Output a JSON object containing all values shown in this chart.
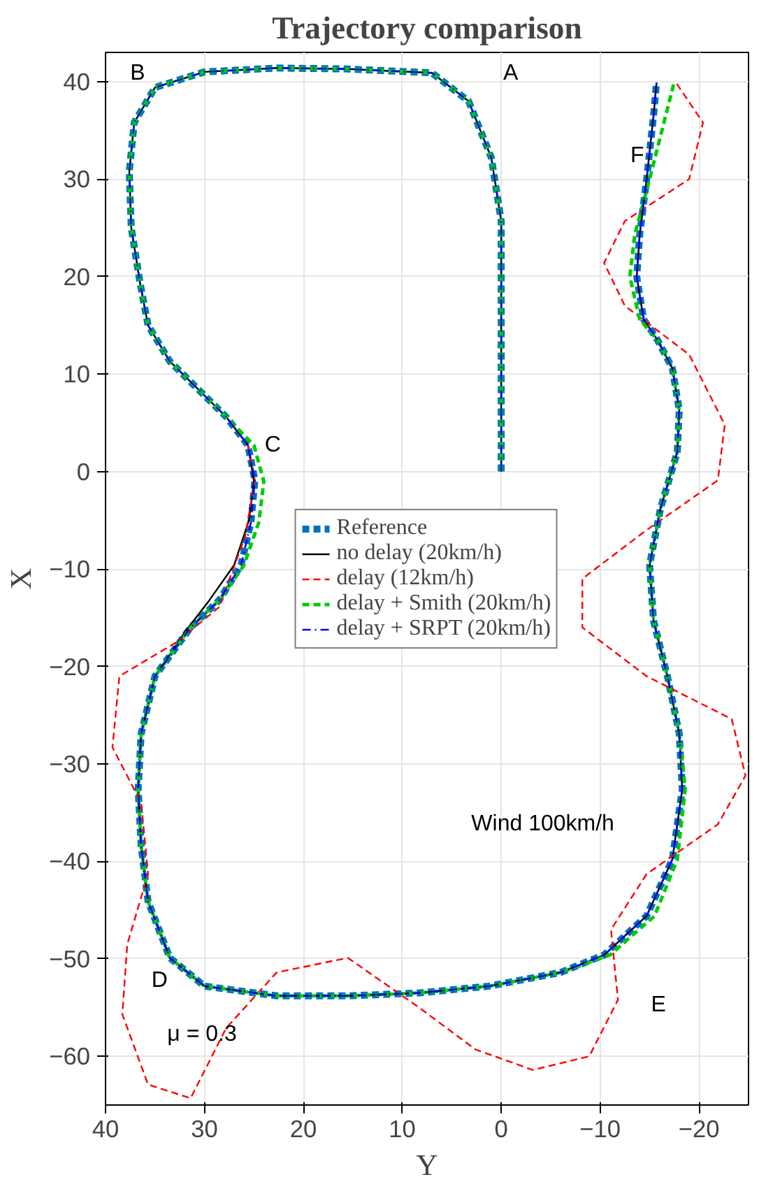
{
  "chart_data": {
    "type": "line",
    "title": "Trajectory comparison",
    "xlabel": "Y",
    "ylabel": "X",
    "xlim": [
      40,
      -25
    ],
    "ylim": [
      -65,
      43
    ],
    "xticks": [
      40,
      30,
      20,
      10,
      0,
      -10,
      -20
    ],
    "yticks": [
      -60,
      -50,
      -40,
      -30,
      -20,
      -10,
      0,
      10,
      20,
      30,
      40
    ],
    "grid": true,
    "legend": "center",
    "series": [
      {
        "name": "Reference",
        "color": "#0072bd",
        "line_style": "dashed",
        "x": [
          0,
          0,
          0,
          1,
          3.3,
          7,
          15.5,
          22.7,
          30,
          35,
          37.1,
          37.6,
          37.4,
          36.5,
          35.7,
          33.5,
          30.6,
          27.8,
          25.6,
          24.9,
          25.3,
          26.3,
          28.5,
          31.4,
          35,
          36.4,
          36.7,
          36.4,
          35.7,
          33.5,
          30,
          22.7,
          15.5,
          8.3,
          1.2,
          -6,
          -10.4,
          -14.7,
          -17.3,
          -18.3,
          -18,
          -16.8,
          -15.4,
          -15,
          -16.1,
          -17.8,
          -18,
          -17.3,
          -15.8,
          -14.4,
          -13.7,
          -14,
          -14.7,
          -15.4,
          -15.7
        ],
        "values": [
          0,
          12,
          25.7,
          32.2,
          38,
          40.9,
          41.3,
          41.4,
          41,
          39.4,
          35.8,
          30.8,
          25,
          19.3,
          15,
          11.3,
          8.4,
          5.6,
          2.7,
          -0.9,
          -5.2,
          -9.6,
          -13.2,
          -16,
          -21,
          -26.9,
          -32.6,
          -38.4,
          -44.1,
          -49.9,
          -52.8,
          -53.8,
          -53.8,
          -53.5,
          -52.8,
          -51.4,
          -49.6,
          -45.6,
          -39.8,
          -32.6,
          -26.9,
          -21,
          -15.3,
          -9.6,
          -3.8,
          2,
          6.3,
          10.6,
          13.5,
          15.6,
          20,
          24.3,
          30,
          36.5,
          39.9
        ]
      },
      {
        "name": "no delay (20km/h)",
        "color": "#000000",
        "line_style": "solid",
        "x": [
          0,
          0,
          0,
          1,
          3.3,
          7,
          15.5,
          22.7,
          30,
          35,
          37.1,
          37.6,
          37.4,
          36.5,
          35.7,
          33.5,
          30.6,
          27.8,
          25.6,
          25,
          25.5,
          27,
          29.5,
          32,
          35,
          36.4,
          36.7,
          36.4,
          35.7,
          33.5,
          30,
          22.7,
          15.5,
          8.3,
          1.2,
          -6,
          -10.4,
          -14.7,
          -17.3,
          -18.3,
          -18,
          -16.8,
          -15.4,
          -15,
          -16.1,
          -17.8,
          -18,
          -17.3,
          -15.8,
          -14.4,
          -13.7,
          -14,
          -14.7,
          -15.4,
          -15.7
        ],
        "values": [
          0,
          12,
          25.7,
          32.2,
          38,
          40.9,
          41.3,
          41.4,
          41,
          39.4,
          35.8,
          30.8,
          25,
          19.3,
          15,
          11.3,
          8.4,
          5.6,
          2.7,
          -1,
          -5,
          -9.6,
          -13.2,
          -16.5,
          -21,
          -26.9,
          -32.6,
          -38.4,
          -44.1,
          -49.9,
          -52.8,
          -53.8,
          -53.8,
          -53.5,
          -52.8,
          -51.4,
          -49.6,
          -45.6,
          -39.8,
          -32.6,
          -26.9,
          -21,
          -15.3,
          -9.6,
          -3.8,
          2,
          6.3,
          10.6,
          13.5,
          15.6,
          20,
          24.3,
          30,
          36.5,
          39.9
        ]
      },
      {
        "name": "delay (12km/h)",
        "color": "#ff0000",
        "line_style": "dashed",
        "x": [
          25.6,
          24.9,
          25.9,
          28.5,
          32.8,
          38.6,
          39.3,
          36.4,
          35.7,
          37.8,
          38.3,
          35.7,
          31.4,
          27.8,
          22.7,
          15.5,
          8.3,
          2.6,
          -3.2,
          -8.9,
          -11.8,
          -11.1,
          -14.7,
          -21.9,
          -24.7,
          -23.3,
          -14.7,
          -8.2,
          -8.2,
          -14.7,
          -21.9,
          -22.6,
          -19,
          -12.5,
          -10.4,
          -12.5,
          -19,
          -20.4,
          -17.6
        ],
        "values": [
          2.7,
          -0.9,
          -6.7,
          -13.9,
          -17.5,
          -21,
          -28.3,
          -34,
          -41.3,
          -48.5,
          -55.7,
          -62.9,
          -64.3,
          -57.1,
          -51.4,
          -49.9,
          -55,
          -59.3,
          -61.4,
          -60,
          -54.2,
          -47,
          -41.3,
          -36.2,
          -31.2,
          -25.4,
          -21,
          -16,
          -11,
          -6,
          -0.9,
          4.8,
          12,
          17,
          21.4,
          25.7,
          30,
          35.8,
          40
        ]
      },
      {
        "name": "delay + Smith (20km/h)",
        "color": "#00cc00",
        "line_style": "dashed",
        "x": [
          0,
          0,
          0,
          1,
          3.3,
          7,
          15.5,
          22.7,
          30,
          35,
          37.1,
          37.6,
          37.4,
          36.5,
          35.7,
          33.5,
          30.6,
          27.8,
          25,
          24,
          24.5,
          26,
          28.5,
          31.4,
          35,
          36.4,
          36.7,
          36.4,
          35.7,
          33.5,
          30,
          22.7,
          15.5,
          8.3,
          1.2,
          -6,
          -11,
          -15.5,
          -17.8,
          -18.6,
          -18,
          -16.8,
          -15.4,
          -15,
          -16.1,
          -17.8,
          -18,
          -17.3,
          -15.8,
          -14,
          -13,
          -13.5,
          -15,
          -16.5,
          -17.5
        ],
        "values": [
          0,
          12,
          25.7,
          32.2,
          38,
          40.9,
          41.3,
          41.4,
          41,
          39.4,
          35.8,
          30.8,
          25,
          19.3,
          15,
          11.3,
          8.4,
          5.6,
          2.7,
          -1,
          -5.2,
          -9.6,
          -13.2,
          -16,
          -21,
          -26.9,
          -32.6,
          -38.4,
          -44.1,
          -49.9,
          -52.8,
          -53.8,
          -53.8,
          -53.5,
          -52.8,
          -51.4,
          -49.6,
          -45.6,
          -39.8,
          -32.6,
          -26.9,
          -21,
          -15.3,
          -9.6,
          -3.8,
          2,
          6.3,
          10.6,
          13.5,
          15.6,
          20,
          24.3,
          30,
          36,
          40
        ]
      },
      {
        "name": "delay + SRPT (20km/h)",
        "color": "#0000ff",
        "line_style": "dashdot",
        "x": [
          0,
          0,
          0,
          1,
          3.3,
          7,
          15.5,
          22.7,
          30,
          35,
          37.1,
          37.6,
          37.4,
          36.5,
          35.7,
          33.5,
          30.6,
          27.8,
          25.6,
          24.9,
          25.3,
          26.3,
          28.5,
          31.4,
          35,
          36.4,
          36.7,
          36.4,
          35.7,
          33.5,
          30,
          22.7,
          15.5,
          8.3,
          1.2,
          -6,
          -10.4,
          -14.7,
          -17.3,
          -18.3,
          -18,
          -16.8,
          -15.4,
          -15,
          -16.1,
          -17.8,
          -18,
          -17.3,
          -15.8,
          -14.4,
          -13.7,
          -14,
          -14.7,
          -15.4,
          -15.7
        ],
        "values": [
          0,
          12,
          25.7,
          32.2,
          38,
          40.9,
          41.3,
          41.4,
          41,
          39.4,
          35.8,
          30.8,
          25,
          19.3,
          15,
          11.3,
          8.4,
          5.6,
          2.7,
          -0.9,
          -5.2,
          -9.6,
          -13.2,
          -16,
          -21,
          -26.9,
          -32.6,
          -38.4,
          -44.1,
          -49.9,
          -52.8,
          -53.8,
          -53.8,
          -53.5,
          -52.8,
          -51.4,
          -49.6,
          -45.6,
          -39.8,
          -32.6,
          -26.9,
          -21,
          -15.3,
          -9.6,
          -3.8,
          2,
          6.3,
          10.6,
          13.5,
          15.6,
          20,
          24.3,
          30,
          36.5,
          39.9
        ]
      }
    ],
    "annotations": [
      "A",
      "B",
      "C",
      "D",
      "E",
      "F",
      "Wind 100km/h",
      "μ = 0.3"
    ]
  }
}
